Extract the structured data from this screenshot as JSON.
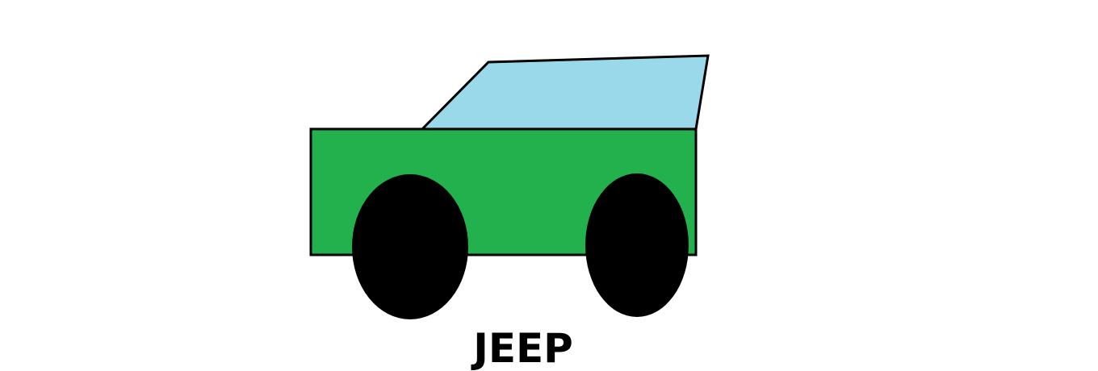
{
  "caption": "JEEP",
  "colors": {
    "background": "#ffffff",
    "body": "#22b14c",
    "window": "#99d9ea",
    "wheels": "#000000",
    "outline": "#000000"
  }
}
